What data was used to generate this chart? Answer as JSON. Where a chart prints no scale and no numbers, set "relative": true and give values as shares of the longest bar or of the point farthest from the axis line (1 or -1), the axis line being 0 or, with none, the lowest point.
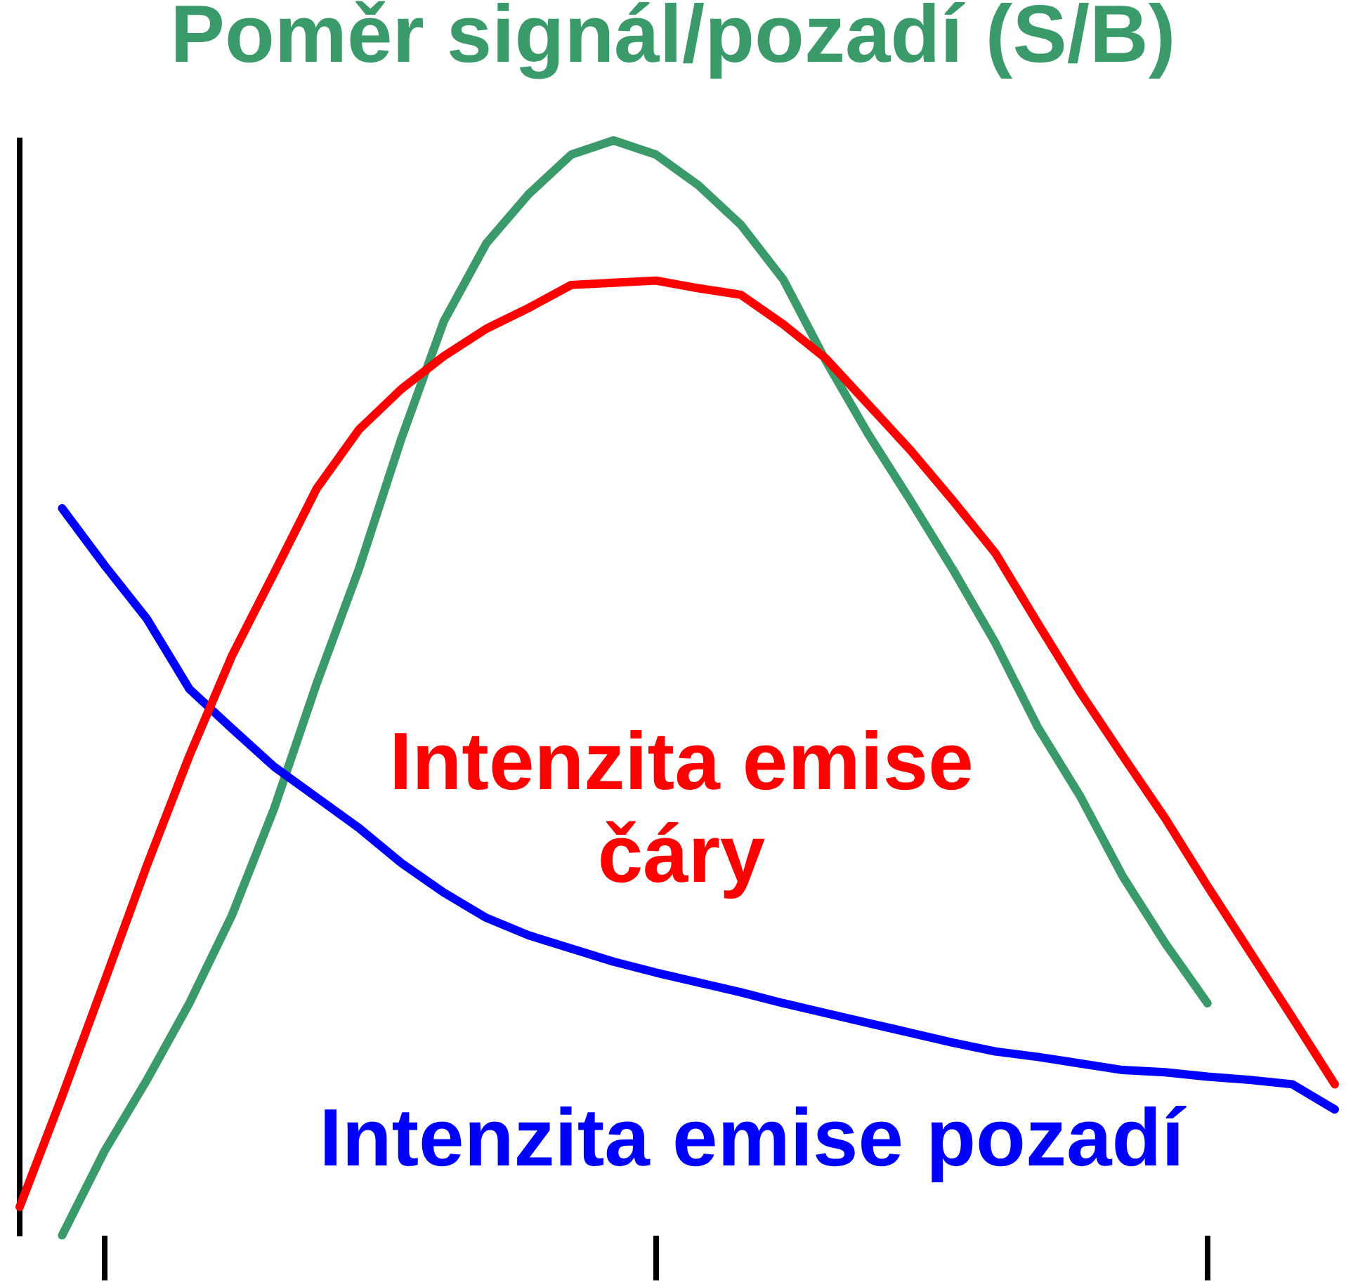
{
  "chart_data": {
    "type": "line",
    "relative": true,
    "grid": false,
    "legend": false,
    "marker": "none",
    "line_style": "solid",
    "categories": [
      null,
      null,
      null,
      null,
      null,
      null,
      null,
      null,
      null,
      null,
      null,
      null,
      null,
      null,
      null,
      null,
      null,
      null,
      null,
      null,
      null,
      null,
      null,
      null,
      null,
      null,
      null,
      null,
      null,
      null,
      null,
      null
    ],
    "series": [
      {
        "name": "Intenzita emise čáry",
        "color": "#ff0000",
        "values": [
          0.026,
          0.127,
          0.232,
          0.338,
          0.438,
          0.529,
          0.605,
          0.682,
          0.736,
          0.773,
          0.803,
          0.828,
          0.847,
          0.868,
          0.87,
          0.872,
          0.865,
          0.859,
          0.832,
          0.801,
          0.759,
          0.717,
          0.671,
          0.623,
          0.559,
          0.496,
          0.438,
          0.381,
          0.319,
          0.259,
          0.199,
          0.138
        ]
      },
      {
        "name": "Intenzita emise pozadí",
        "color": "#0000ff",
        "values": [
          null,
          0.664,
          0.612,
          0.563,
          0.499,
          0.463,
          0.428,
          0.4,
          0.372,
          0.34,
          0.313,
          0.29,
          0.274,
          0.262,
          0.25,
          0.24,
          0.231,
          0.222,
          0.212,
          0.203,
          0.194,
          0.185,
          0.176,
          0.168,
          0.163,
          0.157,
          0.151,
          0.149,
          0.145,
          0.142,
          0.138,
          0.115
        ]
      },
      {
        "name": "Poměr signál/pozadí (S/B)",
        "color": "#3a9a6a",
        "values": [
          null,
          0,
          0.077,
          0.142,
          0.212,
          0.292,
          0.39,
          0.504,
          0.609,
          0.728,
          0.835,
          0.906,
          0.951,
          0.987,
          1,
          0.987,
          0.959,
          0.923,
          0.873,
          0.799,
          0.732,
          0.671,
          0.608,
          0.541,
          0.464,
          0.401,
          0.328,
          0.267,
          0.212,
          null,
          null,
          null
        ]
      }
    ]
  }
}
